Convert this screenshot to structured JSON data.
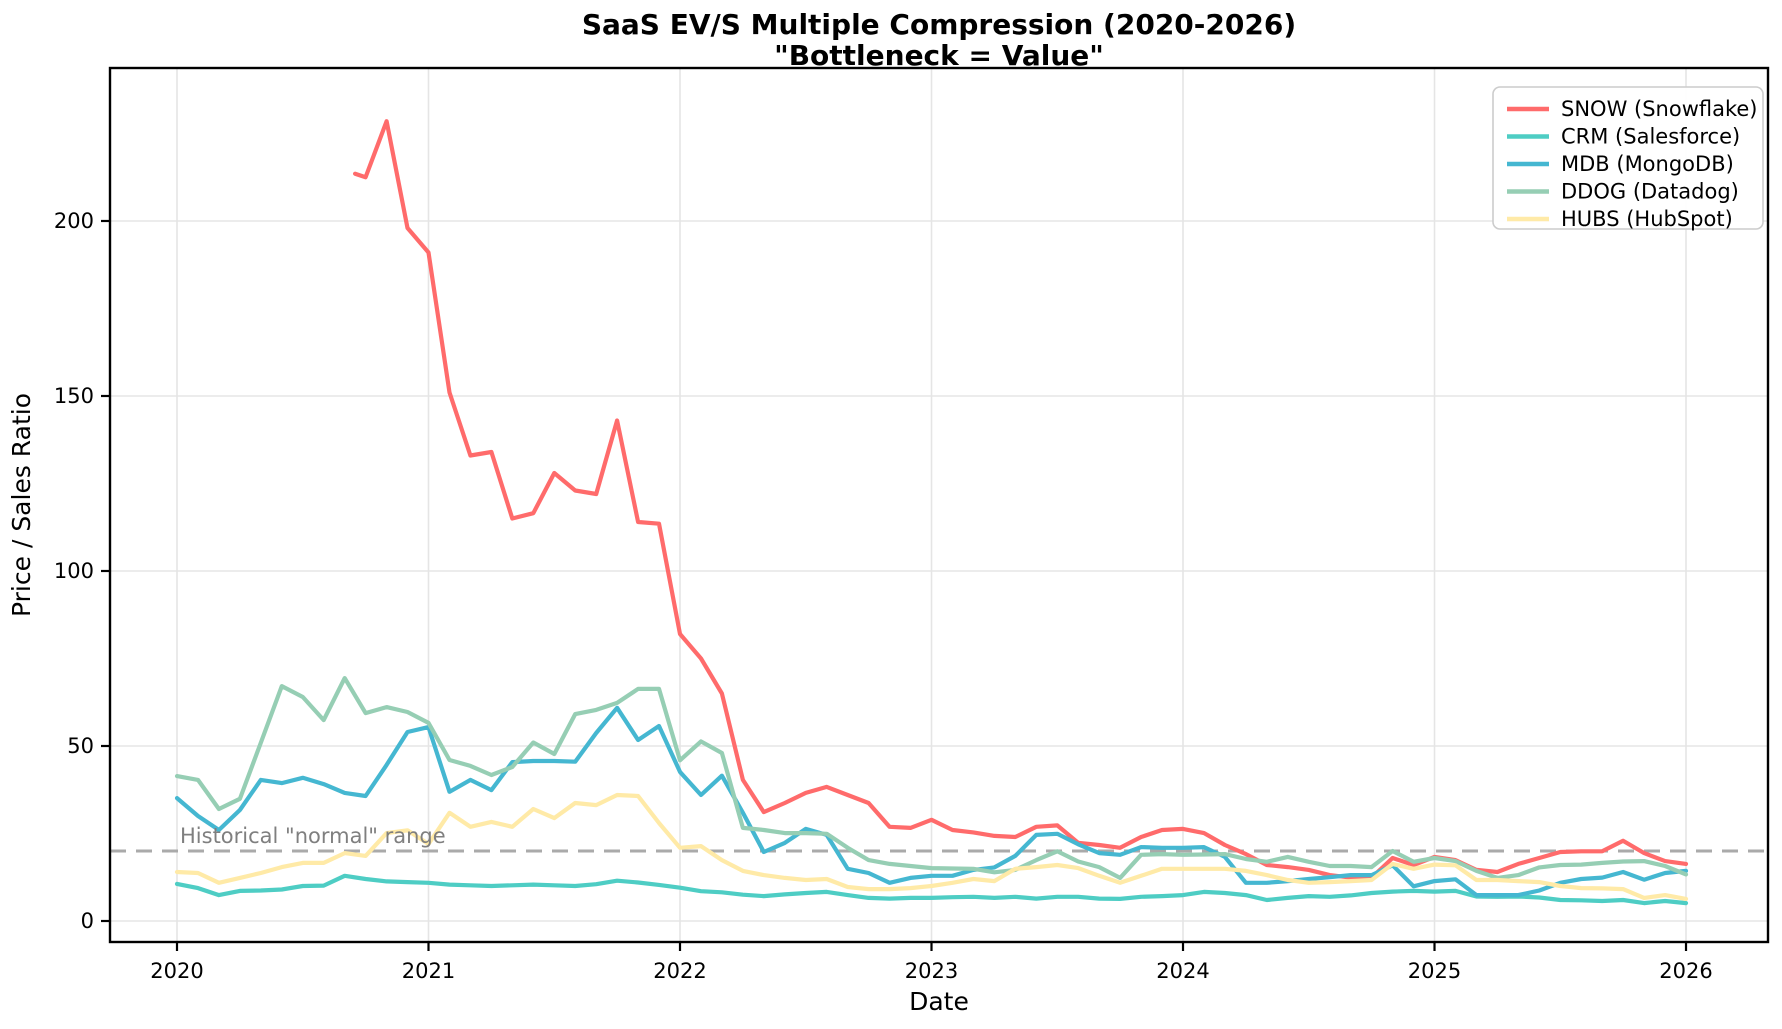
{
  "title": {
    "line1": "SaaS EV/S Multiple Compression (2020-2026)",
    "line2": "\"Bottleneck = Value\""
  },
  "chart_data": {
    "type": "line",
    "title": "SaaS EV/S Multiple Compression (2020-2026)",
    "subtitle": "\"Bottleneck = Value\"",
    "xlabel": "Date",
    "ylabel": "Price / Sales Ratio",
    "x_tick_labels": [
      "2020",
      "2021",
      "2022",
      "2023",
      "2024",
      "2025",
      "2026"
    ],
    "x_tick_years": [
      2020,
      2021,
      2022,
      2023,
      2024,
      2025,
      2026
    ],
    "y_ticks": [
      0,
      50,
      100,
      150,
      200
    ],
    "x_range_years": [
      2019.7336,
      2026.326
    ],
    "y_range": [
      -6,
      243.71
    ],
    "grid": true,
    "legend_position": "upper right",
    "reference_line": {
      "value": 20,
      "label": "Historical \"normal\" range",
      "line_color": "#aaaaaa",
      "text_color": "#7f7f7f",
      "style": "dashed"
    },
    "x_unit": "months since Jan 2020, monthly sampling",
    "series": [
      {
        "name": "SNOW (Snowflake)",
        "ticker": "SNOW",
        "color": "#FF6B6B",
        "x_months": [
          8.5,
          9,
          10,
          11,
          12,
          13,
          14,
          15,
          16,
          17,
          18,
          19,
          20,
          21,
          22,
          23,
          24,
          25,
          26,
          27,
          28,
          29,
          30,
          31,
          32,
          33,
          34,
          35,
          36,
          37,
          38,
          39,
          40,
          41,
          42,
          43,
          44,
          45,
          46,
          47,
          48,
          49,
          50,
          51,
          52,
          53,
          54,
          55,
          56,
          57,
          58,
          59,
          60,
          61,
          62,
          63,
          64,
          65,
          66,
          67,
          68,
          69,
          70,
          71,
          72
        ],
        "values": [
          213.5,
          212.5,
          228.5,
          198,
          191,
          151,
          133,
          134,
          115,
          116.5,
          128,
          123,
          122,
          143,
          114,
          113.5,
          82,
          75,
          65,
          40.3,
          31.1,
          33.7,
          36.6,
          38.3,
          36,
          33.7,
          26.9,
          26.6,
          28.9,
          26,
          25.3,
          24.3,
          24,
          26.9,
          27.3,
          22.3,
          21.7,
          20.9,
          24,
          26,
          26.3,
          25.1,
          21.7,
          19.1,
          16,
          15.4,
          14.6,
          13.1,
          12.4,
          12.4,
          18,
          16,
          18.3,
          17.4,
          14.6,
          14,
          16.3,
          18,
          19.7,
          19.9,
          19.9,
          22.9,
          19.4,
          17.1,
          16.3
        ]
      },
      {
        "name": "CRM (Salesforce)",
        "ticker": "CRM",
        "color": "#4ECDC4",
        "start_month": 0,
        "values": [
          10.6,
          9.4,
          7.4,
          8.6,
          8.7,
          9.0,
          10.0,
          10.1,
          12.9,
          12.0,
          11.3,
          11.1,
          10.9,
          10.4,
          10.2,
          10.0,
          10.2,
          10.4,
          10.2,
          10.0,
          10.5,
          11.5,
          11.0,
          10.3,
          9.5,
          8.5,
          8.2,
          7.5,
          7.1,
          7.6,
          8.0,
          8.3,
          7.4,
          6.6,
          6.4,
          6.6,
          6.6,
          6.8,
          6.9,
          6.6,
          6.9,
          6.4,
          6.9,
          6.9,
          6.4,
          6.3,
          6.9,
          7.1,
          7.4,
          8.3,
          8.0,
          7.4,
          6.0,
          6.6,
          7.1,
          6.9,
          7.3,
          8.0,
          8.4,
          8.6,
          8.4,
          8.6,
          7.0,
          6.9,
          7.0,
          6.7,
          6.0,
          5.9,
          5.7,
          6.0,
          5.1,
          5.7,
          5.1
        ]
      },
      {
        "name": "MDB (MongoDB)",
        "ticker": "MDB",
        "color": "#45B7D1",
        "start_month": 0,
        "values": [
          35.1,
          30.0,
          26.0,
          31.7,
          40.3,
          39.4,
          40.9,
          39.1,
          36.6,
          35.7,
          44.6,
          54.0,
          55.4,
          36.9,
          40.3,
          37.4,
          45.4,
          45.7,
          45.7,
          45.5,
          53.7,
          60.9,
          51.7,
          55.7,
          42.6,
          36.0,
          41.5,
          30.9,
          19.7,
          22.3,
          26.3,
          24.6,
          14.9,
          13.7,
          10.9,
          12.3,
          12.9,
          12.9,
          14.6,
          15.3,
          18.6,
          24.6,
          24.9,
          21.9,
          19.4,
          18.9,
          21.1,
          20.9,
          20.9,
          21.1,
          18.3,
          10.9,
          10.9,
          11.4,
          12.0,
          12.5,
          13.1,
          13.1,
          15.9,
          9.9,
          11.4,
          11.9,
          7.4,
          7.4,
          7.4,
          8.7,
          10.9,
          12.0,
          12.4,
          14.0,
          11.8,
          13.7,
          14.3
        ]
      },
      {
        "name": "DDOG (Datadog)",
        "ticker": "DDOG",
        "color": "#96CEB4",
        "start_month": 0,
        "values": [
          41.4,
          40.3,
          32.0,
          34.9,
          50.9,
          67.1,
          64.0,
          57.4,
          69.4,
          59.4,
          61.1,
          59.7,
          56.6,
          46.0,
          44.3,
          41.7,
          44.0,
          51.0,
          47.7,
          59.1,
          60.3,
          62.3,
          66.3,
          66.3,
          45.9,
          51.3,
          48.0,
          26.6,
          26.0,
          25.1,
          25.1,
          24.9,
          20.9,
          17.4,
          16.3,
          15.7,
          15.1,
          15.0,
          14.9,
          13.9,
          14.6,
          17.4,
          19.9,
          17.0,
          15.4,
          12.3,
          18.9,
          19.1,
          18.9,
          19.0,
          19.1,
          17.7,
          16.9,
          18.3,
          16.9,
          15.7,
          15.7,
          15.4,
          20.0,
          16.9,
          18.0,
          17.1,
          14.3,
          12.3,
          13.1,
          15.3,
          16.0,
          16.1,
          16.6,
          17.0,
          17.1,
          15.7,
          13.3
        ]
      },
      {
        "name": "HUBS (HubSpot)",
        "ticker": "HUBS",
        "color": "#FFEAA7",
        "start_month": 0,
        "values": [
          14.0,
          13.7,
          10.9,
          12.3,
          13.7,
          15.4,
          16.6,
          16.6,
          19.4,
          18.6,
          25.1,
          25.9,
          22.0,
          30.9,
          26.9,
          28.3,
          26.9,
          32.0,
          29.4,
          33.7,
          33.1,
          36.0,
          35.7,
          28.0,
          20.9,
          21.4,
          17.4,
          14.3,
          13.1,
          12.3,
          11.7,
          12.0,
          9.7,
          9.1,
          9.1,
          9.4,
          10.0,
          10.9,
          12.0,
          11.4,
          14.9,
          15.4,
          16.0,
          15.1,
          12.9,
          10.9,
          12.9,
          14.9,
          14.9,
          14.9,
          14.9,
          14.3,
          13.1,
          11.7,
          10.9,
          11.1,
          11.4,
          11.7,
          16.3,
          14.9,
          16.1,
          15.9,
          11.7,
          11.7,
          11.4,
          11.1,
          10.0,
          9.4,
          9.3,
          9.1,
          6.6,
          7.4,
          6.3
        ]
      }
    ]
  },
  "layout_colors": {
    "grid": "#e5e5e5",
    "spine": "#000000",
    "background": "#ffffff",
    "legend_border": "#cccccc"
  }
}
